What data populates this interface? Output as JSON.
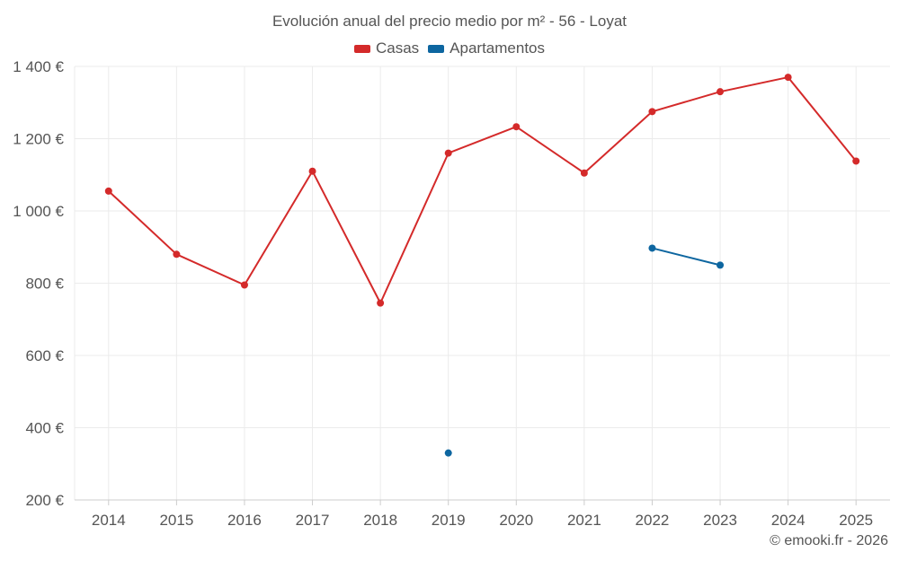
{
  "colors": {
    "casas": "#d42a2a",
    "apartamentos": "#0d66a0",
    "grid": "#ebebeb",
    "axis": "#cccccc"
  },
  "chart_data": {
    "type": "line",
    "title": "Evolución anual del precio medio por m² - 56 - Loyat",
    "xlabel": "",
    "ylabel": "",
    "categories": [
      "2014",
      "2015",
      "2016",
      "2017",
      "2018",
      "2019",
      "2020",
      "2021",
      "2022",
      "2023",
      "2024",
      "2025"
    ],
    "ylim": [
      200,
      1400
    ],
    "yticks": [
      200,
      400,
      600,
      800,
      1000,
      1200,
      1400
    ],
    "ytick_labels": [
      "200 €",
      "400 €",
      "600 €",
      "800 €",
      "1 000 €",
      "1 200 €",
      "1 400 €"
    ],
    "legend_position": "top-center",
    "grid": true,
    "series": [
      {
        "name": "Casas",
        "color_key": "casas",
        "values": [
          1055,
          880,
          795,
          1110,
          745,
          1160,
          1233,
          1105,
          1275,
          1330,
          1370,
          1138
        ]
      },
      {
        "name": "Apartamentos",
        "color_key": "apartamentos",
        "values": [
          null,
          null,
          null,
          null,
          null,
          330,
          null,
          null,
          897,
          850,
          null,
          null
        ]
      }
    ]
  },
  "credit": "© emooki.fr - 2026"
}
